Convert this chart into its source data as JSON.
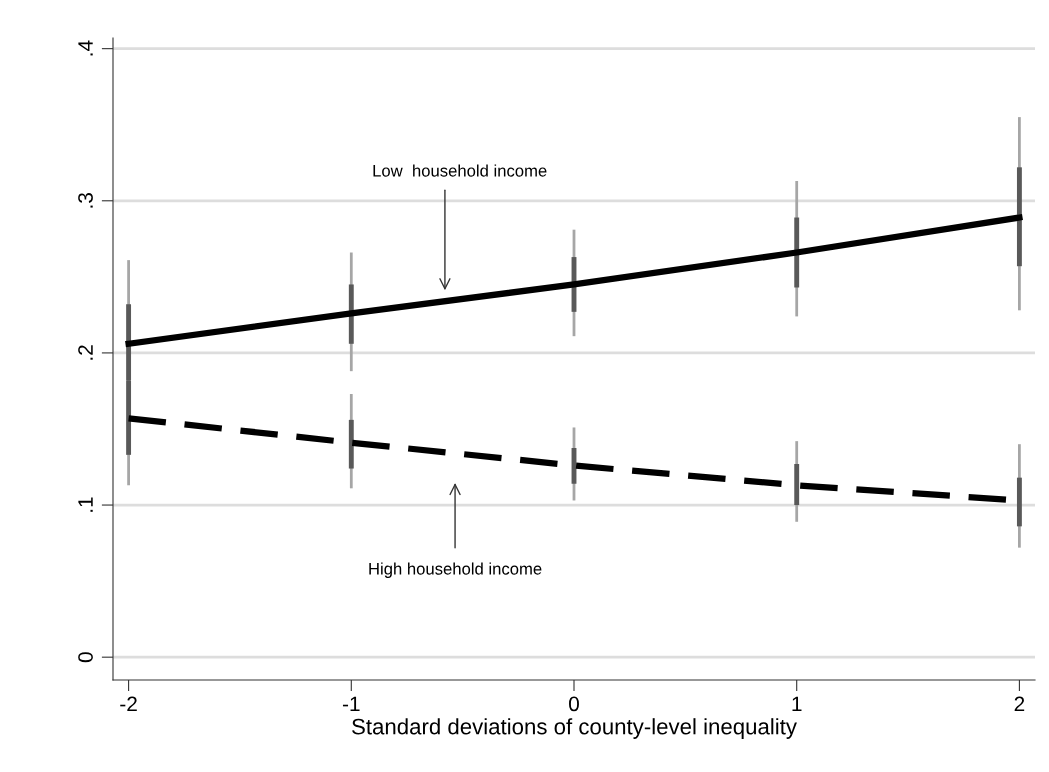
{
  "chart_data": {
    "type": "line",
    "xlabel": "Standard deviations of county-level inequality",
    "x": [
      -2,
      -1,
      0,
      1,
      2
    ],
    "series": [
      {
        "line_style": "solid",
        "color": "#000000",
        "values": [
          0.206,
          0.226,
          0.245,
          0.266,
          0.289
        ],
        "errors": [
          [
            0.152,
            0.261
          ],
          [
            0.188,
            0.266
          ],
          [
            0.211,
            0.281
          ],
          [
            0.224,
            0.313
          ],
          [
            0.228,
            0.355
          ]
        ]
      },
      {
        "line_style": "dashed",
        "color": "#000000",
        "values": [
          0.157,
          0.141,
          0.126,
          0.113,
          0.103
        ],
        "errors": [
          [
            0.113,
            0.201
          ],
          [
            0.111,
            0.173
          ],
          [
            0.103,
            0.151
          ],
          [
            0.089,
            0.142
          ],
          [
            0.072,
            0.14
          ]
        ]
      },
      {
        "type": "bar",
        "color": "#595959",
        "base": [
          0.182,
          0.206,
          0.227,
          0.243,
          0.257
        ],
        "values": [
          0.05,
          0.039,
          0.036,
          0.046,
          0.065
        ]
      },
      {
        "type": "bar",
        "color": "#595959",
        "base": [
          0.133,
          0.124,
          0.114,
          0.1,
          0.086
        ],
        "values": [
          0.049,
          0.032,
          0.0235,
          0.027,
          0.032
        ]
      }
    ],
    "xlim": [
      -2.07,
      2.07
    ],
    "xticks": [
      -2,
      -1,
      0,
      1,
      2
    ],
    "ylim": [
      -0.015,
      0.407
    ],
    "yticks": [
      0,
      {
        "value": 0.1,
        "label": ".1"
      },
      {
        "value": 0.2,
        "label": ".2"
      },
      {
        "value": 0.3,
        "label": ".3"
      },
      {
        "value": 0.4,
        "label": ".4"
      }
    ],
    "grid": "y",
    "legend": false,
    "annotations": [
      "Low  household income",
      "High household income"
    ]
  }
}
